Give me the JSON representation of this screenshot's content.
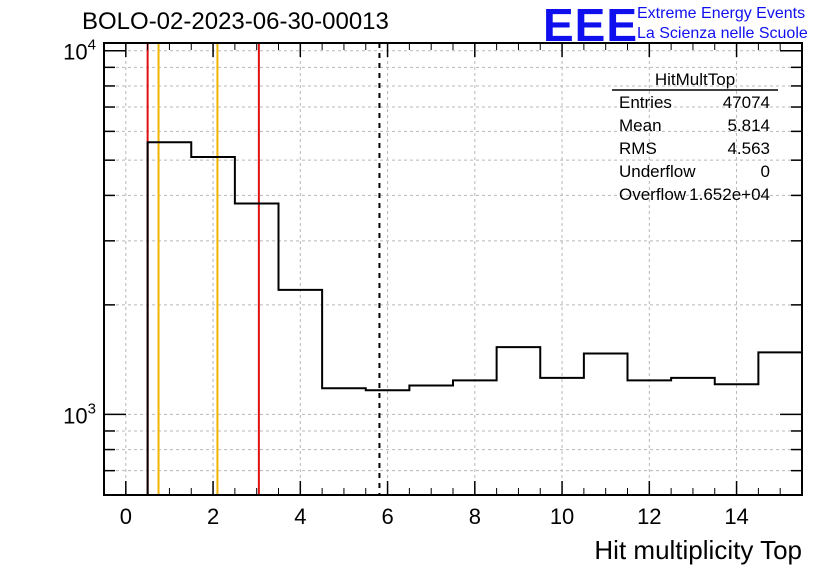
{
  "run_title": "BOLO-02-2023-06-30-00013",
  "logo": {
    "mark": "EEE",
    "line1": "Extreme Energy Events",
    "line2": "La Scienza nelle Scuole",
    "color": "#1010ee"
  },
  "stats": {
    "title": "HitMultTop",
    "rows": [
      {
        "label": "Entries",
        "value": "47074"
      },
      {
        "label": "Mean",
        "value": "5.814"
      },
      {
        "label": "RMS",
        "value": "4.563"
      },
      {
        "label": "Underflow",
        "value": "0"
      },
      {
        "label": "Overflow",
        "value": "1.652e+04"
      }
    ]
  },
  "chart_data": {
    "type": "histogram",
    "xlabel": "Hit multiplicity Top",
    "xlim": [
      -0.5,
      15.5
    ],
    "ylim": [
      600,
      10500
    ],
    "yscale": "log",
    "grid": true,
    "x_ticks": [
      0,
      2,
      4,
      6,
      8,
      10,
      12,
      14
    ],
    "y_tick_labels": [
      {
        "value": 1000,
        "base": "10",
        "exp": "3"
      },
      {
        "value": 10000,
        "base": "10",
        "exp": "4"
      }
    ],
    "bins": {
      "edges": [
        -0.5,
        0.5,
        1.5,
        2.5,
        3.5,
        4.5,
        5.5,
        6.5,
        7.5,
        8.5,
        9.5,
        10.5,
        11.5,
        12.5,
        13.5,
        14.5,
        15.5
      ],
      "values": [
        0,
        5600,
        5100,
        3800,
        2200,
        1180,
        1165,
        1200,
        1240,
        1530,
        1260,
        1470,
        1240,
        1260,
        1210,
        1480
      ]
    },
    "vertical_lines": [
      {
        "x": 0.5,
        "color": "#e01010",
        "style": "solid"
      },
      {
        "x": 0.75,
        "color": "#f0b400",
        "style": "solid"
      },
      {
        "x": 2.1,
        "color": "#f0b400",
        "style": "solid"
      },
      {
        "x": 3.05,
        "color": "#e01010",
        "style": "solid"
      },
      {
        "x": 5.814,
        "color": "#000000",
        "style": "dashed"
      }
    ]
  }
}
